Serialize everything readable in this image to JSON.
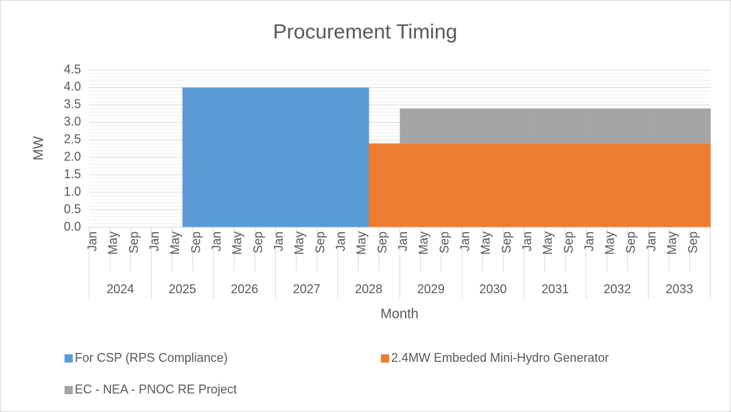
{
  "chart_data": {
    "type": "stacked-area",
    "title": "Procurement Timing",
    "x_label": "Month",
    "y_label": "MW",
    "categories": [
      "Jan",
      null,
      null,
      null,
      "May",
      null,
      null,
      null,
      "Sep",
      null,
      null,
      null,
      "Jan",
      null,
      null,
      null,
      "May",
      null,
      null,
      null,
      "Sep",
      null,
      null,
      null,
      "Jan",
      null,
      null,
      null,
      "May",
      null,
      null,
      null,
      "Sep",
      null,
      null,
      null,
      "Jan",
      null,
      null,
      null,
      "May",
      null,
      null,
      null,
      "Sep",
      null,
      null,
      null,
      "Jan",
      null,
      null,
      null,
      "May",
      null,
      null,
      null,
      "Sep",
      null,
      null,
      null,
      "Jan",
      null,
      null,
      null,
      "May",
      null,
      null,
      null,
      "Sep",
      null,
      null,
      null,
      "Jan",
      null,
      null,
      null,
      "May",
      null,
      null,
      null,
      "Sep",
      null,
      null,
      null,
      "Jan",
      null,
      null,
      null,
      "May",
      null,
      null,
      null,
      "Sep",
      null,
      null,
      null,
      "Jan",
      null,
      null,
      null,
      "May",
      null,
      null,
      null,
      "Sep",
      null,
      null,
      null,
      "Jan",
      null,
      null,
      null,
      "May",
      null,
      null,
      null,
      "Sep",
      null,
      null,
      null
    ],
    "category_groups": [
      "2024",
      "2025",
      "2026",
      "2027",
      "2028",
      "2029",
      "2030",
      "2031",
      "2032",
      "2033"
    ],
    "series": [
      {
        "name": "For CSP (RPS Compliance)",
        "color": "#5b9bd5",
        "values": [
          0,
          0,
          0,
          0,
          0,
          0,
          0,
          0,
          0,
          0,
          0,
          0,
          0,
          0,
          0,
          0,
          0,
          0,
          4,
          4,
          4,
          4,
          4,
          4,
          4,
          4,
          4,
          4,
          4,
          4,
          4,
          4,
          4,
          4,
          4,
          4,
          4,
          4,
          4,
          4,
          4,
          4,
          4,
          4,
          4,
          4,
          4,
          4,
          4,
          4,
          4,
          4,
          4,
          4,
          0,
          0,
          0,
          0,
          0,
          0,
          0,
          0,
          0,
          0,
          0,
          0,
          0,
          0,
          0,
          0,
          0,
          0,
          0,
          0,
          0,
          0,
          0,
          0,
          0,
          0,
          0,
          0,
          0,
          0,
          0,
          0,
          0,
          0,
          0,
          0,
          0,
          0,
          0,
          0,
          0,
          0,
          0,
          0,
          0,
          0,
          0,
          0,
          0,
          0,
          0,
          0,
          0,
          0,
          0,
          0,
          0,
          0,
          0,
          0,
          0,
          0,
          0,
          0,
          0,
          0
        ]
      },
      {
        "name": "2.4MW Embeded Mini-Hydro Generator",
        "color": "#ed7d31",
        "values": [
          0,
          0,
          0,
          0,
          0,
          0,
          0,
          0,
          0,
          0,
          0,
          0,
          0,
          0,
          0,
          0,
          0,
          0,
          0,
          0,
          0,
          0,
          0,
          0,
          0,
          0,
          0,
          0,
          0,
          0,
          0,
          0,
          0,
          0,
          0,
          0,
          0,
          0,
          0,
          0,
          0,
          0,
          0,
          0,
          0,
          0,
          0,
          0,
          0,
          0,
          0,
          0,
          0,
          0,
          2.4,
          2.4,
          2.4,
          2.4,
          2.4,
          2.4,
          2.4,
          2.4,
          2.4,
          2.4,
          2.4,
          2.4,
          2.4,
          2.4,
          2.4,
          2.4,
          2.4,
          2.4,
          2.4,
          2.4,
          2.4,
          2.4,
          2.4,
          2.4,
          2.4,
          2.4,
          2.4,
          2.4,
          2.4,
          2.4,
          2.4,
          2.4,
          2.4,
          2.4,
          2.4,
          2.4,
          2.4,
          2.4,
          2.4,
          2.4,
          2.4,
          2.4,
          2.4,
          2.4,
          2.4,
          2.4,
          2.4,
          2.4,
          2.4,
          2.4,
          2.4,
          2.4,
          2.4,
          2.4,
          2.4,
          2.4,
          2.4,
          2.4,
          2.4,
          2.4,
          2.4,
          2.4,
          2.4,
          2.4,
          2.4,
          2.4
        ]
      },
      {
        "name": "EC - NEA - PNOC RE Project",
        "color": "#a5a5a5",
        "values": [
          0,
          0,
          0,
          0,
          0,
          0,
          0,
          0,
          0,
          0,
          0,
          0,
          0,
          0,
          0,
          0,
          0,
          0,
          0,
          0,
          0,
          0,
          0,
          0,
          0,
          0,
          0,
          0,
          0,
          0,
          0,
          0,
          0,
          0,
          0,
          0,
          0,
          0,
          0,
          0,
          0,
          0,
          0,
          0,
          0,
          0,
          0,
          0,
          0,
          0,
          0,
          0,
          0,
          0,
          0,
          0,
          0,
          0,
          0,
          0,
          1,
          1,
          1,
          1,
          1,
          1,
          1,
          1,
          1,
          1,
          1,
          1,
          1,
          1,
          1,
          1,
          1,
          1,
          1,
          1,
          1,
          1,
          1,
          1,
          1,
          1,
          1,
          1,
          1,
          1,
          1,
          1,
          1,
          1,
          1,
          1,
          1,
          1,
          1,
          1,
          1,
          1,
          1,
          1,
          1,
          1,
          1,
          1,
          1,
          1,
          1,
          1,
          1,
          1,
          1,
          1,
          1,
          1,
          1,
          1
        ]
      }
    ],
    "ylim": [
      0,
      4.5
    ],
    "yticks": [
      {
        "value": 0,
        "label": "0.0"
      },
      {
        "value": 0.5,
        "label": "0.5"
      },
      {
        "value": 1,
        "label": "1.0"
      },
      {
        "value": 1.5,
        "label": "1.5"
      },
      {
        "value": 2,
        "label": "2.0"
      },
      {
        "value": 2.5,
        "label": "2.5"
      },
      {
        "value": 3,
        "label": "3.0"
      },
      {
        "value": 3.5,
        "label": "3.5"
      },
      {
        "value": 4,
        "label": "4.0"
      },
      {
        "value": 4.5,
        "label": "4.5"
      }
    ],
    "grid": true,
    "legend": "bottom"
  }
}
